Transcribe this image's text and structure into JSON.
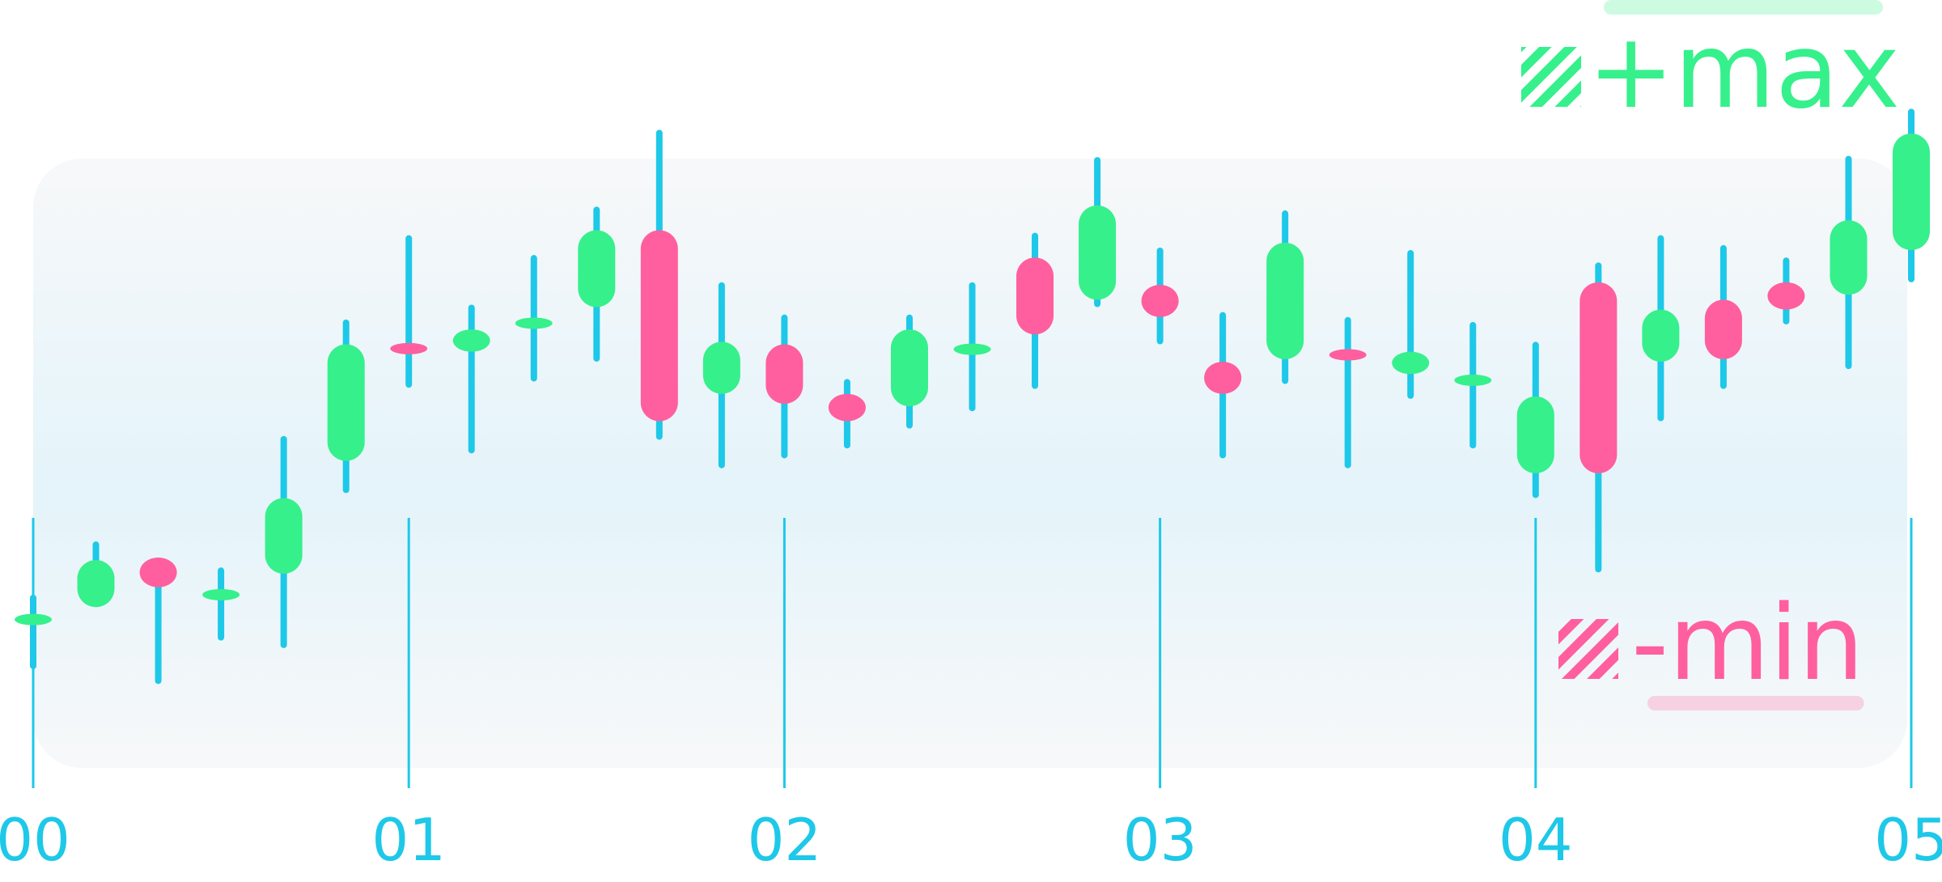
{
  "chart_data": {
    "type": "candlestick",
    "x": [
      0,
      0.167,
      0.333,
      0.5,
      0.667,
      0.833,
      1,
      1.167,
      1.333,
      1.5,
      1.667,
      1.833,
      2,
      2.167,
      2.333,
      2.5,
      2.667,
      2.833,
      3,
      3.167,
      3.333,
      3.5,
      3.667,
      3.833,
      4,
      4.167,
      4.333,
      4.5,
      4.667,
      4.833,
      5
    ],
    "open": [
      26.8,
      29.2,
      37.2,
      31.0,
      34.6,
      52.8,
      71.2,
      70.4,
      74.6,
      77.6,
      90.0,
      63.6,
      71.6,
      63.6,
      61.6,
      70.4,
      85.6,
      78.8,
      81.2,
      68.8,
      69.2,
      70.2,
      66.8,
      65.4,
      50.8,
      81.6,
      68.8,
      78.8,
      81.6,
      79.6,
      86.8
    ],
    "high": [
      31.2,
      39.8,
      37.2,
      35.6,
      56.8,
      75.6,
      89.2,
      78.0,
      86.0,
      93.8,
      106.2,
      81.6,
      76.4,
      66.0,
      76.4,
      81.6,
      89.6,
      101.8,
      87.2,
      76.8,
      93.2,
      76.0,
      86.8,
      75.2,
      72.0,
      84.8,
      89.2,
      87.6,
      85.6,
      102.0,
      109.6
    ],
    "low": [
      19.2,
      29.2,
      16.8,
      23.8,
      22.6,
      47.6,
      64.6,
      54.0,
      65.6,
      68.8,
      56.2,
      51.6,
      53.2,
      54.8,
      58.0,
      60.8,
      64.4,
      77.6,
      71.6,
      53.2,
      65.2,
      51.6,
      62.8,
      54.8,
      46.8,
      34.8,
      59.2,
      64.4,
      74.8,
      67.6,
      81.6
    ],
    "close": [
      27.6,
      36.8,
      32.4,
      31.4,
      46.8,
      71.6,
      70.6,
      74.0,
      75.4,
      90.0,
      59.2,
      72.0,
      62.0,
      59.2,
      74.0,
      71.2,
      73.2,
      94.0,
      76.0,
      63.6,
      88.0,
      69.6,
      70.4,
      66.2,
      63.2,
      50.8,
      77.2,
      69.2,
      77.2,
      91.6,
      105.6
    ],
    "up_color": "#36f08c",
    "down_color": "#ff5f9e",
    "axis_color": "#1ec8e8",
    "xlim": [
      0,
      5
    ],
    "xticks": [
      {
        "value": 0,
        "label": "00"
      },
      {
        "value": 1,
        "label": "01"
      },
      {
        "value": 2,
        "label": "02"
      },
      {
        "value": 3,
        "label": "03"
      },
      {
        "value": 4,
        "label": "04"
      },
      {
        "value": 5,
        "label": "05"
      }
    ],
    "ylim": [
      0,
      112
    ],
    "legend": [
      {
        "label": "+max",
        "color": "#36f08c"
      },
      {
        "label": "-min",
        "color": "#ff5f9e"
      }
    ],
    "legend_position": "right"
  }
}
